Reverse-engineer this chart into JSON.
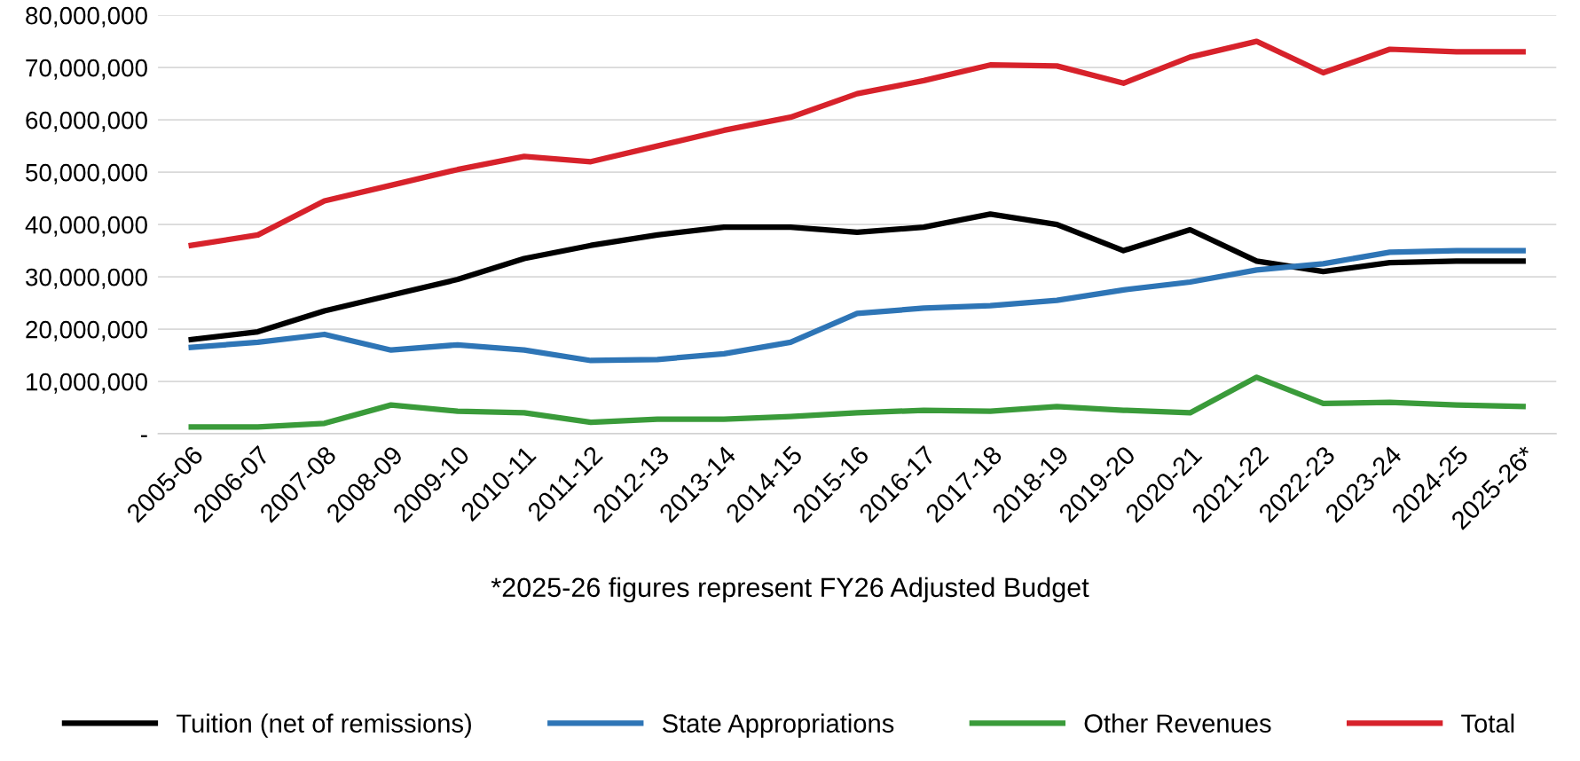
{
  "chart_data": {
    "type": "line",
    "categories": [
      "2005-06",
      "2006-07",
      "2007-08",
      "2008-09",
      "2009-10",
      "2010-11",
      "2011-12",
      "2012-13",
      "2013-14",
      "2014-15",
      "2015-16",
      "2016-17",
      "2017-18",
      "2018-19",
      "2019-20",
      "2020-21",
      "2021-22",
      "2022-23",
      "2023-24",
      "2024-25",
      "2025-26*"
    ],
    "series": [
      {
        "name": "Tuition (net of remissions)",
        "color": "#000000",
        "values": [
          18000000,
          19500000,
          23500000,
          26500000,
          29500000,
          33500000,
          36000000,
          38000000,
          39500000,
          39500000,
          38500000,
          39500000,
          42000000,
          40000000,
          35000000,
          39000000,
          33000000,
          31000000,
          32700000,
          33000000,
          33000000
        ]
      },
      {
        "name": "State Appropriations",
        "color": "#2e75b6",
        "values": [
          16500000,
          17500000,
          19000000,
          16000000,
          17000000,
          16000000,
          14000000,
          14200000,
          15300000,
          17500000,
          23000000,
          24000000,
          24500000,
          25500000,
          27500000,
          29000000,
          31300000,
          32500000,
          34700000,
          35000000,
          35000000
        ]
      },
      {
        "name": "Other Revenues",
        "color": "#3a9b3a",
        "values": [
          1300000,
          1300000,
          2000000,
          5500000,
          4300000,
          4000000,
          2200000,
          2800000,
          2800000,
          3300000,
          4000000,
          4500000,
          4300000,
          5200000,
          4500000,
          4000000,
          10800000,
          5800000,
          6000000,
          5500000,
          5200000
        ]
      },
      {
        "name": "Total",
        "color": "#d7222b",
        "values": [
          36000000,
          38000000,
          44500000,
          47500000,
          50500000,
          53000000,
          52000000,
          55000000,
          58000000,
          60500000,
          65000000,
          67500000,
          70500000,
          70300000,
          67000000,
          72000000,
          75000000,
          69000000,
          73500000,
          73000000,
          73000000
        ]
      }
    ],
    "ylim": [
      0,
      80000000
    ],
    "yticks": [
      {
        "value": 0,
        "label": "-"
      },
      {
        "value": 10000000,
        "label": "10,000,000"
      },
      {
        "value": 20000000,
        "label": "20,000,000"
      },
      {
        "value": 30000000,
        "label": "30,000,000"
      },
      {
        "value": 40000000,
        "label": "40,000,000"
      },
      {
        "value": 50000000,
        "label": "50,000,000"
      },
      {
        "value": 60000000,
        "label": "60,000,000"
      },
      {
        "value": 70000000,
        "label": "70,000,000"
      },
      {
        "value": 80000000,
        "label": "80,000,000"
      }
    ],
    "grid": "y",
    "legend": "bottom",
    "marker": "none",
    "line_style": "solid",
    "annotations": [
      "*2025-26 figures represent FY26 Adjusted Budget"
    ]
  }
}
